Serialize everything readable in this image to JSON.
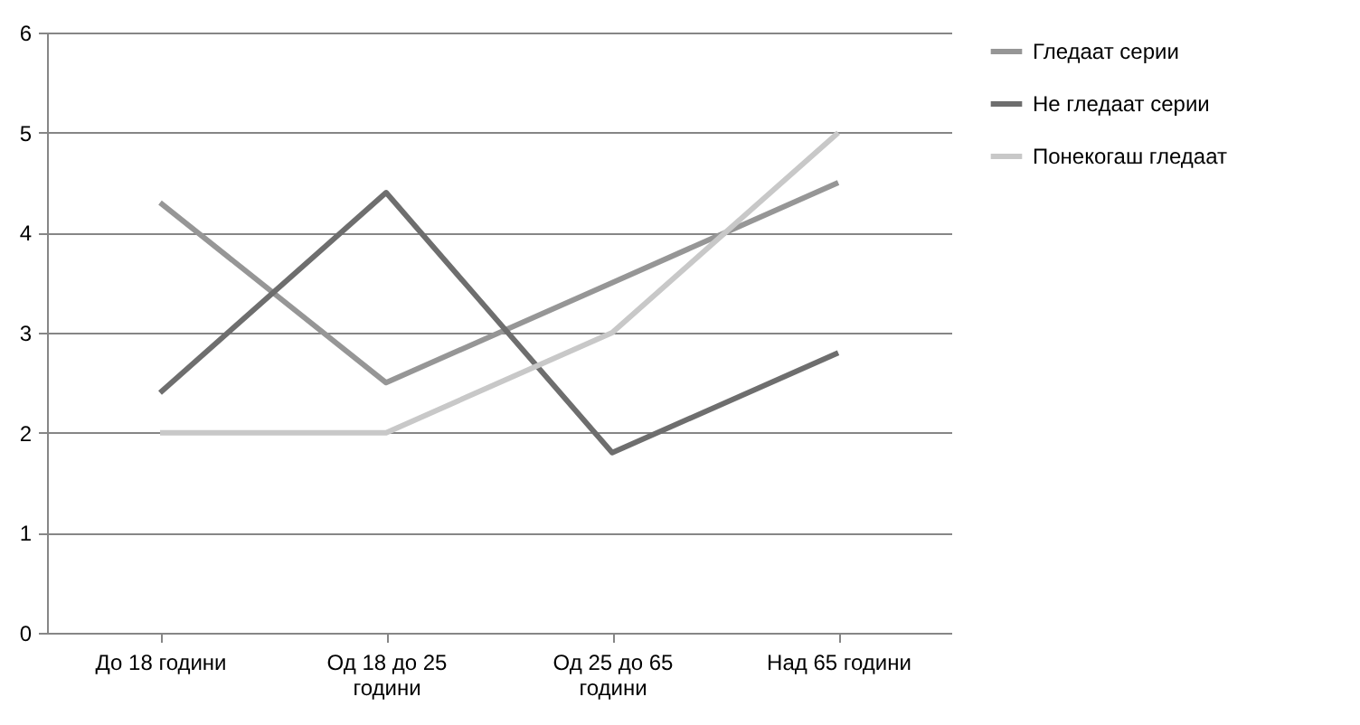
{
  "chart_data": {
    "type": "line",
    "categories": [
      "До 18 години",
      "Од 18 до 25 години",
      "Од 25 до 65 години",
      "Над 65 години"
    ],
    "series": [
      {
        "name": "Гледаат серии",
        "color": "#969696",
        "values": [
          4.3,
          2.5,
          3.5,
          4.5
        ]
      },
      {
        "name": "Не гледаат серии",
        "color": "#6e6e6e",
        "values": [
          2.4,
          4.4,
          1.8,
          2.8
        ]
      },
      {
        "name": "Понекогаш гледаат",
        "color": "#c8c8c8",
        "values": [
          2,
          2,
          3,
          5
        ]
      }
    ],
    "ylim": [
      0,
      6
    ],
    "yticks": [
      0,
      1,
      2,
      3,
      4,
      5,
      6
    ],
    "grid": "y",
    "legend": "right",
    "marker": "none",
    "line_style": "solid"
  }
}
